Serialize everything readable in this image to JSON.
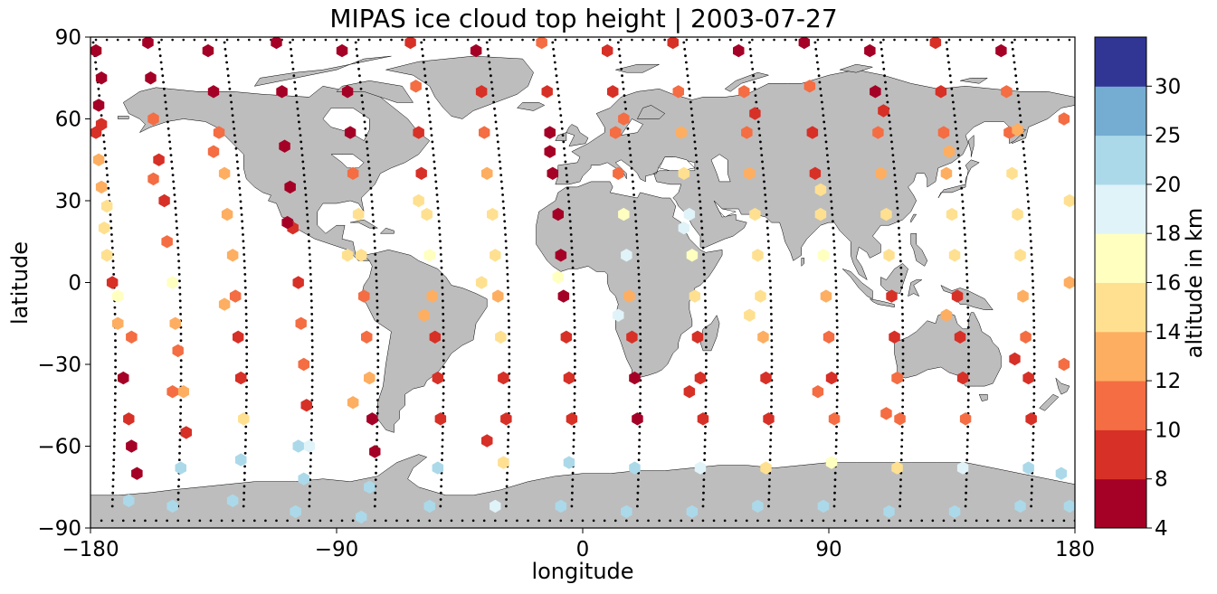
{
  "title": "MIPAS ice cloud top height | 2003-07-27",
  "chart_data": {
    "type": "scatter",
    "title": "MIPAS ice cloud top height | 2003-07-27",
    "xlabel": "longitude",
    "ylabel": "latitude",
    "xlim": [
      -180,
      180
    ],
    "ylim": [
      -90,
      90
    ],
    "xticks": [
      "−180",
      "−90",
      "0",
      "90",
      "180"
    ],
    "yticks": [
      "90",
      "60",
      "30",
      "0",
      "−30",
      "−60",
      "−90"
    ],
    "basemap": "world coastlines, land filled grey",
    "colors": {
      "land": "#bdbdbd",
      "coast": "#000000",
      "track": "#000000"
    },
    "colorbar": {
      "label": "altitude in km",
      "bounds": [
        4,
        8,
        10,
        12,
        14,
        16,
        18,
        20,
        25,
        30
      ],
      "tick_labels": [
        "4",
        "8",
        "10",
        "12",
        "14",
        "16",
        "18",
        "20",
        "25",
        "30"
      ],
      "colors": [
        "#a50026",
        "#d73027",
        "#f46d43",
        "#fdae61",
        "#fee090",
        "#ffffbf",
        "#e0f3f8",
        "#abd9e9",
        "#74add1",
        "#313695"
      ]
    },
    "orbits": [
      {
        "top": -179,
        "bottom": -172,
        "lat_top": 88,
        "lat_bottom": -82
      },
      {
        "top": -155,
        "bottom": -148,
        "lat_top": 88,
        "lat_bottom": -82
      },
      {
        "top": -131,
        "bottom": -124,
        "lat_top": 88,
        "lat_bottom": -82
      },
      {
        "top": -107,
        "bottom": -100,
        "lat_top": 88,
        "lat_bottom": -82
      },
      {
        "top": -83,
        "bottom": -76,
        "lat_top": 88,
        "lat_bottom": -82
      },
      {
        "top": -59,
        "bottom": -52,
        "lat_top": 88,
        "lat_bottom": -82
      },
      {
        "top": -35,
        "bottom": -28,
        "lat_top": 88,
        "lat_bottom": -82
      },
      {
        "top": -11,
        "bottom": -4,
        "lat_top": 88,
        "lat_bottom": -82
      },
      {
        "top": 13,
        "bottom": 20,
        "lat_top": 88,
        "lat_bottom": -82
      },
      {
        "top": 37,
        "bottom": 44,
        "lat_top": 88,
        "lat_bottom": -82
      },
      {
        "top": 61,
        "bottom": 68,
        "lat_top": 88,
        "lat_bottom": -82
      },
      {
        "top": 85,
        "bottom": 92,
        "lat_top": 88,
        "lat_bottom": -82
      },
      {
        "top": 109,
        "bottom": 116,
        "lat_top": 88,
        "lat_bottom": -82
      },
      {
        "top": 133,
        "bottom": 140,
        "lat_top": 88,
        "lat_bottom": -82
      },
      {
        "top": 157,
        "bottom": 164,
        "lat_top": 88,
        "lat_bottom": -82
      }
    ],
    "points": [
      [
        -178,
        85,
        7
      ],
      [
        -176,
        75,
        6
      ],
      [
        -177,
        65,
        7
      ],
      [
        -178,
        55,
        8
      ],
      [
        -177,
        45,
        13
      ],
      [
        -176,
        35,
        13
      ],
      [
        -175,
        20,
        15
      ],
      [
        -174,
        10,
        15
      ],
      [
        -172,
        0,
        8
      ],
      [
        -170,
        -15,
        13
      ],
      [
        -168,
        -35,
        7
      ],
      [
        -166,
        -50,
        9
      ],
      [
        -165,
        -60,
        7
      ],
      [
        -163,
        -70,
        7
      ],
      [
        -166,
        -80,
        21
      ],
      [
        -159,
        88,
        7
      ],
      [
        -158,
        75,
        7
      ],
      [
        -157,
        60,
        10
      ],
      [
        -155,
        45,
        9
      ],
      [
        -153,
        30,
        9
      ],
      [
        -152,
        15,
        10
      ],
      [
        -150,
        0,
        17
      ],
      [
        -149,
        -15,
        13
      ],
      [
        -148,
        -25,
        10
      ],
      [
        -146,
        -40,
        13
      ],
      [
        -145,
        -55,
        9
      ],
      [
        -147,
        -68,
        20
      ],
      [
        -150,
        -82,
        21
      ],
      [
        -137,
        85,
        7
      ],
      [
        -135,
        70,
        7
      ],
      [
        -133,
        55,
        10
      ],
      [
        -131,
        40,
        12
      ],
      [
        -130,
        25,
        13
      ],
      [
        -128,
        10,
        13
      ],
      [
        -127,
        -5,
        11
      ],
      [
        -126,
        -20,
        8
      ],
      [
        -125,
        -35,
        9
      ],
      [
        -124,
        -50,
        14
      ],
      [
        -125,
        -65,
        21
      ],
      [
        -128,
        -80,
        21
      ],
      [
        -112,
        88,
        7
      ],
      [
        -110,
        70,
        7
      ],
      [
        -109,
        50,
        7
      ],
      [
        -107,
        35,
        7
      ],
      [
        -106,
        20,
        8
      ],
      [
        -104,
        0,
        9
      ],
      [
        -103,
        -15,
        10
      ],
      [
        -102,
        -30,
        11
      ],
      [
        -101,
        -45,
        9
      ],
      [
        -100,
        -60,
        19
      ],
      [
        -102,
        -72,
        21
      ],
      [
        -105,
        -84,
        21
      ],
      [
        -88,
        85,
        7
      ],
      [
        -86,
        70,
        7
      ],
      [
        -85,
        55,
        7
      ],
      [
        -84,
        40,
        10
      ],
      [
        -82,
        25,
        15
      ],
      [
        -81,
        10,
        14
      ],
      [
        -80,
        -5,
        10
      ],
      [
        -79,
        -20,
        10
      ],
      [
        -78,
        -35,
        13
      ],
      [
        -77,
        -50,
        7
      ],
      [
        -76,
        -62,
        7
      ],
      [
        -78,
        -75,
        21
      ],
      [
        -81,
        -86,
        21
      ],
      [
        -63,
        88,
        9
      ],
      [
        -61,
        72,
        10
      ],
      [
        -60,
        55,
        8
      ],
      [
        -59,
        40,
        9
      ],
      [
        -57,
        25,
        15
      ],
      [
        -56,
        10,
        17
      ],
      [
        -55,
        -5,
        13
      ],
      [
        -54,
        -20,
        9
      ],
      [
        -53,
        -35,
        9
      ],
      [
        -52,
        -50,
        8
      ],
      [
        -53,
        -68,
        21
      ],
      [
        -56,
        -82,
        21
      ],
      [
        -39,
        85,
        7
      ],
      [
        -37,
        70,
        9
      ],
      [
        -36,
        55,
        10
      ],
      [
        -35,
        40,
        13
      ],
      [
        -33,
        25,
        15
      ],
      [
        -32,
        10,
        15
      ],
      [
        -31,
        -5,
        13
      ],
      [
        -30,
        -20,
        14
      ],
      [
        -29,
        -35,
        8
      ],
      [
        -28,
        -50,
        8
      ],
      [
        -29,
        -66,
        15
      ],
      [
        -32,
        -82,
        19
      ],
      [
        -15,
        88,
        10
      ],
      [
        -13,
        70,
        9
      ],
      [
        -12,
        55,
        7
      ],
      [
        -11,
        40,
        7
      ],
      [
        -9,
        25,
        7
      ],
      [
        -8,
        10,
        7
      ],
      [
        -7,
        -5,
        7
      ],
      [
        -6,
        -20,
        8
      ],
      [
        -5,
        -35,
        9
      ],
      [
        -4,
        -50,
        8
      ],
      [
        -5,
        -66,
        21
      ],
      [
        -8,
        -82,
        21
      ],
      [
        9,
        85,
        9
      ],
      [
        11,
        70,
        9
      ],
      [
        12,
        55,
        10
      ],
      [
        13,
        40,
        10
      ],
      [
        15,
        25,
        17
      ],
      [
        16,
        10,
        18
      ],
      [
        17,
        -5,
        13
      ],
      [
        18,
        -20,
        9
      ],
      [
        19,
        -35,
        7
      ],
      [
        20,
        -50,
        7
      ],
      [
        19,
        -68,
        21
      ],
      [
        16,
        -84,
        21
      ],
      [
        33,
        88,
        9
      ],
      [
        35,
        70,
        11
      ],
      [
        36,
        55,
        13
      ],
      [
        37,
        40,
        15
      ],
      [
        39,
        25,
        19
      ],
      [
        40,
        10,
        17
      ],
      [
        41,
        -5,
        15
      ],
      [
        42,
        -20,
        9
      ],
      [
        43,
        -35,
        8
      ],
      [
        44,
        -50,
        8
      ],
      [
        43,
        -68,
        19
      ],
      [
        40,
        -84,
        21
      ],
      [
        57,
        85,
        7
      ],
      [
        59,
        70,
        10
      ],
      [
        60,
        55,
        10
      ],
      [
        61,
        40,
        13
      ],
      [
        63,
        25,
        15
      ],
      [
        64,
        10,
        15
      ],
      [
        65,
        -5,
        14
      ],
      [
        66,
        -20,
        12
      ],
      [
        67,
        -35,
        9
      ],
      [
        68,
        -50,
        9
      ],
      [
        67,
        -68,
        15
      ],
      [
        64,
        -82,
        21
      ],
      [
        81,
        88,
        7
      ],
      [
        83,
        72,
        10
      ],
      [
        84,
        55,
        9
      ],
      [
        85,
        40,
        9
      ],
      [
        87,
        25,
        15
      ],
      [
        88,
        10,
        17
      ],
      [
        89,
        -5,
        13
      ],
      [
        90,
        -20,
        11
      ],
      [
        91,
        -35,
        9
      ],
      [
        92,
        -50,
        10
      ],
      [
        91,
        -66,
        17
      ],
      [
        88,
        -82,
        21
      ],
      [
        105,
        85,
        7
      ],
      [
        107,
        70,
        7
      ],
      [
        108,
        55,
        10
      ],
      [
        109,
        40,
        12
      ],
      [
        111,
        25,
        15
      ],
      [
        112,
        10,
        15
      ],
      [
        113,
        -5,
        9
      ],
      [
        114,
        -20,
        9
      ],
      [
        115,
        -35,
        11
      ],
      [
        116,
        -50,
        10
      ],
      [
        115,
        -68,
        15
      ],
      [
        112,
        -84,
        21
      ],
      [
        129,
        88,
        9
      ],
      [
        131,
        70,
        9
      ],
      [
        132,
        55,
        10
      ],
      [
        133,
        40,
        13
      ],
      [
        135,
        25,
        15
      ],
      [
        136,
        10,
        15
      ],
      [
        137,
        -5,
        9
      ],
      [
        138,
        -20,
        9
      ],
      [
        139,
        -35,
        9
      ],
      [
        140,
        -50,
        10
      ],
      [
        139,
        -68,
        19
      ],
      [
        136,
        -84,
        21
      ],
      [
        153,
        85,
        7
      ],
      [
        155,
        70,
        10
      ],
      [
        156,
        55,
        10
      ],
      [
        157,
        40,
        14
      ],
      [
        159,
        25,
        15
      ],
      [
        160,
        10,
        14
      ],
      [
        161,
        -5,
        13
      ],
      [
        162,
        -20,
        11
      ],
      [
        163,
        -35,
        8
      ],
      [
        164,
        -50,
        8
      ],
      [
        163,
        -68,
        21
      ],
      [
        160,
        -82,
        21
      ],
      [
        -176,
        58,
        8
      ],
      [
        -174,
        28,
        14
      ],
      [
        -170,
        -5,
        17
      ],
      [
        -165,
        -20,
        11
      ],
      [
        -157,
        38,
        10
      ],
      [
        -150,
        -40,
        11
      ],
      [
        -135,
        48,
        10
      ],
      [
        -131,
        -8,
        12
      ],
      [
        -108,
        22,
        7
      ],
      [
        -104,
        -60,
        20
      ],
      [
        -86,
        10,
        15
      ],
      [
        -84,
        -44,
        13
      ],
      [
        -60,
        30,
        14
      ],
      [
        -58,
        -12,
        12
      ],
      [
        -37,
        0,
        15
      ],
      [
        -35,
        -58,
        8
      ],
      [
        -12,
        48,
        7
      ],
      [
        -9,
        2,
        17
      ],
      [
        13,
        -12,
        19
      ],
      [
        15,
        60,
        10
      ],
      [
        37,
        20,
        19
      ],
      [
        39,
        -40,
        8
      ],
      [
        61,
        -12,
        14
      ],
      [
        63,
        62,
        9
      ],
      [
        86,
        -40,
        10
      ],
      [
        87,
        34,
        15
      ],
      [
        111,
        -48,
        10
      ],
      [
        110,
        63,
        8
      ],
      [
        133,
        -12,
        12
      ],
      [
        134,
        48,
        13
      ],
      [
        158,
        -28,
        9
      ],
      [
        159,
        56,
        12
      ],
      [
        176,
        60,
        11
      ],
      [
        178,
        30,
        14
      ],
      [
        178,
        0,
        13
      ],
      [
        176,
        -30,
        10
      ],
      [
        175,
        -70,
        21
      ],
      [
        178,
        -82,
        21
      ]
    ]
  }
}
